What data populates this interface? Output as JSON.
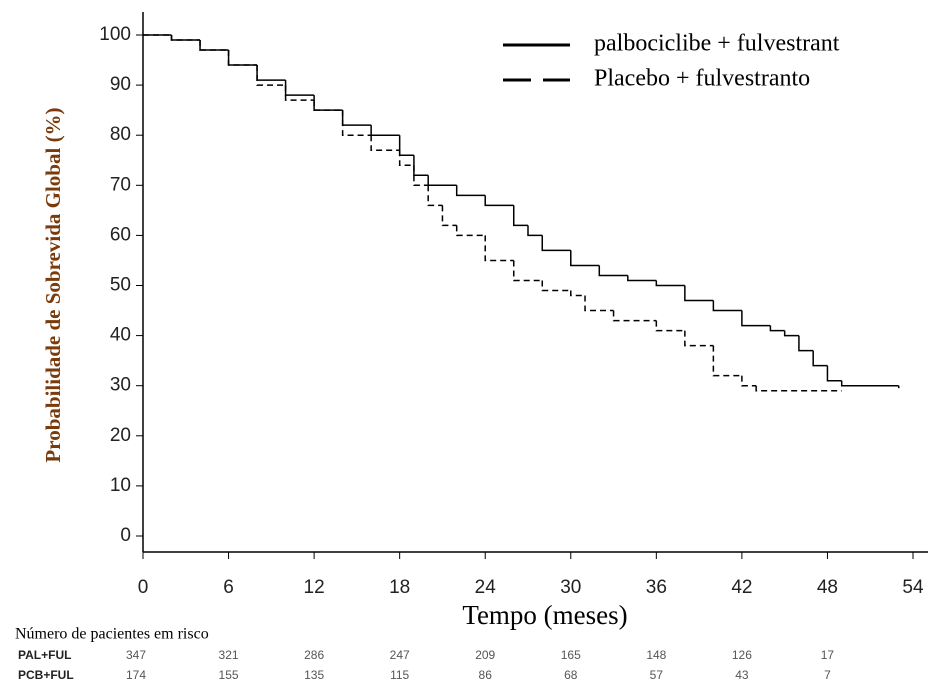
{
  "chart_data": {
    "type": "step",
    "ylabel": "Probabilidade de Sobrevida Global (%)",
    "xlabel": "Tempo (meses)",
    "xlim": [
      0,
      54
    ],
    "xticks": [
      0,
      6,
      12,
      18,
      24,
      30,
      36,
      42,
      48,
      54
    ],
    "ylim": [
      0,
      100
    ],
    "yticks": [
      0,
      10,
      20,
      30,
      40,
      50,
      60,
      70,
      80,
      90,
      100
    ],
    "series": [
      {
        "name": "palbociclibe + fulvestrant",
        "color": "#000000",
        "linestyle": "solid",
        "x": [
          0,
          2,
          4,
          6,
          8,
          10,
          12,
          14,
          16,
          18,
          19,
          20,
          22,
          24,
          26,
          27,
          28,
          30,
          32,
          34,
          36,
          38,
          40,
          42,
          44,
          45,
          46,
          47,
          48,
          49,
          53
        ],
        "values": [
          100,
          99,
          97,
          94,
          91,
          88,
          85,
          82,
          80,
          76,
          72,
          70,
          68,
          66,
          62,
          60,
          57,
          54,
          52,
          51,
          50,
          47,
          45,
          42,
          41,
          40,
          37,
          34,
          31,
          30,
          29.5
        ]
      },
      {
        "name": "Placebo + fulvestranto",
        "color": "#000000",
        "linestyle": "dashed",
        "x": [
          0,
          2,
          4,
          6,
          8,
          10,
          12,
          14,
          16,
          18,
          19,
          20,
          21,
          22,
          24,
          26,
          28,
          30,
          31,
          33,
          36,
          38,
          40,
          42,
          43,
          49
        ],
        "values": [
          100,
          99,
          97,
          94,
          90,
          87,
          85,
          80,
          77,
          74,
          70,
          66,
          62,
          60,
          55,
          51,
          49,
          48,
          45,
          43,
          41,
          38,
          32,
          30,
          29,
          29
        ]
      }
    ],
    "risk_table": {
      "title": "Número de pacientes em risco",
      "rows": [
        {
          "label": "PAL+FUL",
          "values": [
            347,
            321,
            286,
            247,
            209,
            165,
            148,
            126,
            17
          ]
        },
        {
          "label": "PCB+FUL",
          "values": [
            174,
            155,
            135,
            115,
            86,
            68,
            57,
            43,
            7
          ]
        }
      ]
    }
  }
}
